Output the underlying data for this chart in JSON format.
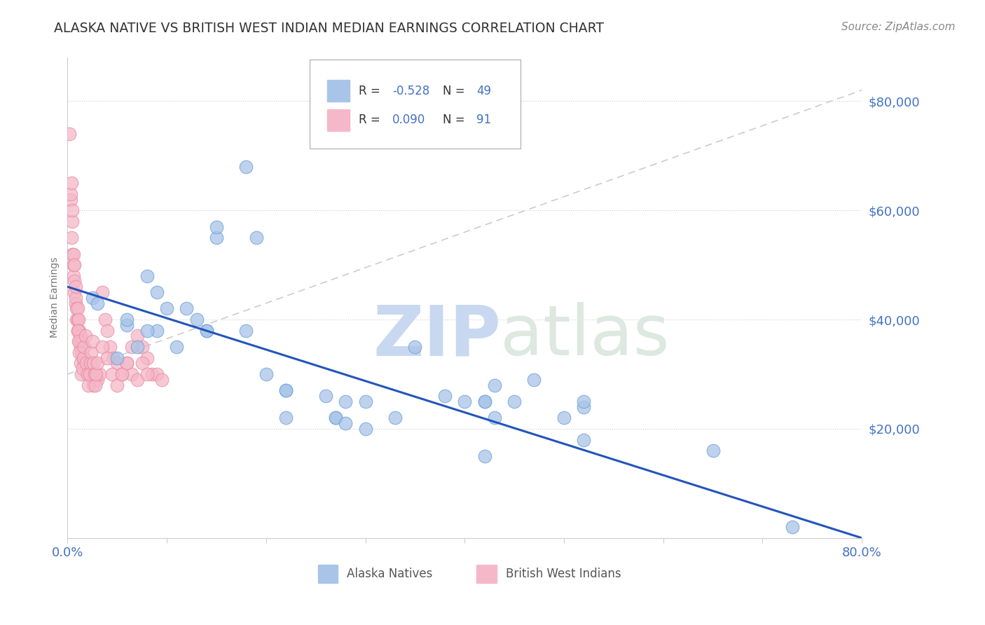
{
  "title": "ALASKA NATIVE VS BRITISH WEST INDIAN MEDIAN EARNINGS CORRELATION CHART",
  "source": "Source: ZipAtlas.com",
  "ylabel": "Median Earnings",
  "y_tick_labels": [
    "$20,000",
    "$40,000",
    "$60,000",
    "$80,000"
  ],
  "y_tick_values": [
    20000,
    40000,
    60000,
    80000
  ],
  "xlim": [
    0.0,
    0.8
  ],
  "ylim": [
    0,
    88000
  ],
  "legend_label_blue": "Alaska Natives",
  "legend_label_pink": "British West Indians",
  "R_blue": "-0.528",
  "N_blue": "49",
  "R_pink": "0.090",
  "N_pink": "91",
  "color_blue": "#a8c4e8",
  "color_blue_edge": "#6a9fd8",
  "color_pink": "#f5b8c8",
  "color_pink_edge": "#e88aa0",
  "color_line_blue": "#2255bb",
  "color_line_pink": "#cccccc",
  "color_title": "#333333",
  "color_axis_labels": "#4472c4",
  "color_source": "#888888",
  "watermark": "ZIPatlas",
  "blue_line_x0": 0.0,
  "blue_line_y0": 46000,
  "blue_line_x1": 0.8,
  "blue_line_y1": 0,
  "pink_line_x0": 0.0,
  "pink_line_y0": 30000,
  "pink_line_x1": 0.8,
  "pink_line_y1": 82000,
  "blue_points_x": [
    0.025,
    0.18,
    0.03,
    0.05,
    0.06,
    0.07,
    0.08,
    0.09,
    0.09,
    0.1,
    0.11,
    0.12,
    0.13,
    0.14,
    0.15,
    0.15,
    0.18,
    0.19,
    0.2,
    0.22,
    0.22,
    0.26,
    0.27,
    0.27,
    0.28,
    0.28,
    0.3,
    0.33,
    0.35,
    0.38,
    0.4,
    0.42,
    0.42,
    0.43,
    0.43,
    0.45,
    0.47,
    0.5,
    0.52,
    0.52,
    0.06,
    0.08,
    0.14,
    0.22,
    0.3,
    0.42,
    0.52,
    0.65,
    0.73
  ],
  "blue_points_y": [
    44000,
    68000,
    43000,
    33000,
    39000,
    35000,
    48000,
    38000,
    45000,
    42000,
    35000,
    42000,
    40000,
    38000,
    55000,
    57000,
    38000,
    55000,
    30000,
    27000,
    22000,
    26000,
    22000,
    22000,
    25000,
    21000,
    25000,
    22000,
    35000,
    26000,
    25000,
    15000,
    25000,
    28000,
    22000,
    25000,
    29000,
    22000,
    24000,
    25000,
    40000,
    38000,
    38000,
    27000,
    20000,
    25000,
    18000,
    16000,
    2000
  ],
  "pink_points_x": [
    0.002,
    0.003,
    0.003,
    0.004,
    0.004,
    0.005,
    0.005,
    0.005,
    0.006,
    0.006,
    0.006,
    0.007,
    0.007,
    0.007,
    0.008,
    0.008,
    0.008,
    0.009,
    0.009,
    0.01,
    0.01,
    0.01,
    0.011,
    0.011,
    0.012,
    0.012,
    0.013,
    0.013,
    0.014,
    0.014,
    0.015,
    0.015,
    0.016,
    0.017,
    0.018,
    0.019,
    0.02,
    0.021,
    0.022,
    0.023,
    0.025,
    0.026,
    0.028,
    0.03,
    0.032,
    0.035,
    0.038,
    0.04,
    0.043,
    0.046,
    0.05,
    0.055,
    0.06,
    0.065,
    0.07,
    0.075,
    0.08,
    0.085,
    0.09,
    0.095,
    0.01,
    0.011,
    0.012,
    0.013,
    0.014,
    0.015,
    0.016,
    0.017,
    0.018,
    0.019,
    0.02,
    0.021,
    0.022,
    0.023,
    0.024,
    0.025,
    0.026,
    0.027,
    0.028,
    0.029,
    0.03,
    0.035,
    0.04,
    0.045,
    0.05,
    0.055,
    0.06,
    0.065,
    0.07,
    0.075,
    0.08
  ],
  "pink_points_y": [
    74000,
    62000,
    63000,
    65000,
    55000,
    58000,
    60000,
    52000,
    48000,
    50000,
    52000,
    45000,
    47000,
    50000,
    43000,
    44000,
    46000,
    40000,
    42000,
    38000,
    40000,
    42000,
    38000,
    40000,
    36000,
    38000,
    35000,
    37000,
    34000,
    36000,
    33000,
    35000,
    32000,
    33000,
    32000,
    31000,
    30000,
    31000,
    30000,
    30000,
    29000,
    28000,
    30000,
    29000,
    30000,
    45000,
    40000,
    38000,
    35000,
    33000,
    32000,
    30000,
    32000,
    30000,
    29000,
    35000,
    33000,
    30000,
    30000,
    29000,
    38000,
    36000,
    34000,
    32000,
    30000,
    31000,
    33000,
    35000,
    37000,
    32000,
    30000,
    28000,
    30000,
    32000,
    34000,
    36000,
    32000,
    30000,
    28000,
    30000,
    32000,
    35000,
    33000,
    30000,
    28000,
    30000,
    32000,
    35000,
    37000,
    32000,
    30000
  ]
}
